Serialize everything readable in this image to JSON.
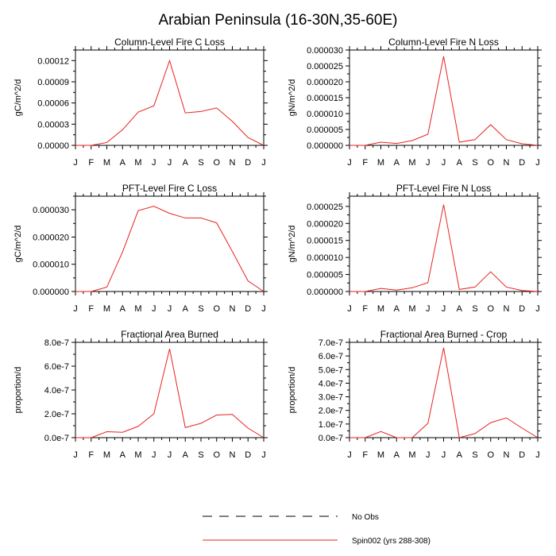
{
  "title": "Arabian Peninsula (16-30N,35-60E)",
  "legend": [
    {
      "label": "No Obs",
      "style": "dashed",
      "color": "#000000"
    },
    {
      "label": "Spin002 (yrs 288-308)",
      "style": "solid",
      "color": "#e8221f"
    }
  ],
  "chart_data": [
    {
      "type": "line",
      "title": "Column-Level Fire C Loss",
      "ylabel": "gC/m^2/d",
      "xlabel": "",
      "categories": [
        "J",
        "F",
        "M",
        "A",
        "M",
        "J",
        "J",
        "A",
        "S",
        "O",
        "N",
        "D",
        "J"
      ],
      "ylim": [
        0,
        0.000135
      ],
      "yticks": [
        0,
        3e-05,
        6e-05,
        9e-05,
        0.00012
      ],
      "ytick_labels": [
        "0.00000",
        "0.00003",
        "0.00006",
        "0.00009",
        "0.00012"
      ],
      "series": [
        {
          "name": "Spin002 (yrs 288-308)",
          "values": [
            0,
            0,
            4e-06,
            2.2e-05,
            4.7e-05,
            5.6e-05,
            0.00012,
            4.6e-05,
            4.8e-05,
            5.3e-05,
            3.4e-05,
            1.1e-05,
            0
          ]
        }
      ]
    },
    {
      "type": "line",
      "title": "Column-Level Fire N Loss",
      "ylabel": "gN/m^2/d",
      "xlabel": "",
      "categories": [
        "J",
        "F",
        "M",
        "A",
        "M",
        "J",
        "J",
        "A",
        "S",
        "O",
        "N",
        "D",
        "J"
      ],
      "ylim": [
        0,
        3e-05
      ],
      "yticks": [
        0,
        5e-06,
        1e-05,
        1.5e-05,
        2e-05,
        2.5e-05,
        3e-05
      ],
      "ytick_labels": [
        "0.000000",
        "0.000005",
        "0.000010",
        "0.000015",
        "0.000020",
        "0.000025",
        "0.000030"
      ],
      "series": [
        {
          "name": "Spin002 (yrs 288-308)",
          "values": [
            0,
            0,
            1e-06,
            6e-07,
            1.5e-06,
            3.5e-06,
            2.8e-05,
            1e-06,
            1.8e-06,
            6.5e-06,
            1.8e-06,
            5e-07,
            0
          ]
        }
      ]
    },
    {
      "type": "line",
      "title": "PFT-Level Fire C Loss",
      "ylabel": "gC/m^2/d",
      "xlabel": "",
      "categories": [
        "J",
        "F",
        "M",
        "A",
        "M",
        "J",
        "J",
        "A",
        "S",
        "O",
        "N",
        "D",
        "J"
      ],
      "ylim": [
        0,
        3.5e-05
      ],
      "yticks": [
        0,
        1e-05,
        2e-05,
        3e-05
      ],
      "ytick_labels": [
        "0.000000",
        "0.000010",
        "0.000020",
        "0.000030"
      ],
      "series": [
        {
          "name": "Spin002 (yrs 288-308)",
          "values": [
            0,
            0,
            1.6e-06,
            1.45e-05,
            2.97e-05,
            3.13e-05,
            2.87e-05,
            2.7e-05,
            2.7e-05,
            2.52e-05,
            1.47e-05,
            3.9e-06,
            0
          ]
        }
      ]
    },
    {
      "type": "line",
      "title": "PFT-Level Fire N Loss",
      "ylabel": "gN/m^2/d",
      "xlabel": "",
      "categories": [
        "J",
        "F",
        "M",
        "A",
        "M",
        "J",
        "J",
        "A",
        "S",
        "O",
        "N",
        "D",
        "J"
      ],
      "ylim": [
        0,
        2.8e-05
      ],
      "yticks": [
        0,
        5e-06,
        1e-05,
        1.5e-05,
        2e-05,
        2.5e-05
      ],
      "ytick_labels": [
        "0.000000",
        "0.000005",
        "0.000010",
        "0.000015",
        "0.000020",
        "0.000025"
      ],
      "series": [
        {
          "name": "Spin002 (yrs 288-308)",
          "values": [
            0,
            0,
            9e-07,
            4e-07,
            1.1e-06,
            2.6e-06,
            2.55e-05,
            6e-07,
            1.3e-06,
            5.8e-06,
            1.3e-06,
            3e-07,
            0
          ]
        }
      ]
    },
    {
      "type": "line",
      "title": "Fractional Area Burned",
      "ylabel": "proportion/d",
      "xlabel": "",
      "categories": [
        "J",
        "F",
        "M",
        "A",
        "M",
        "J",
        "J",
        "A",
        "S",
        "O",
        "N",
        "D",
        "J"
      ],
      "ylim": [
        0,
        8e-07
      ],
      "yticks": [
        0,
        2e-07,
        4e-07,
        6e-07,
        8e-07
      ],
      "ytick_labels": [
        "0.0e-7",
        "2.0e-7",
        "4.0e-7",
        "6.0e-7",
        "8.0e-7"
      ],
      "series": [
        {
          "name": "Spin002 (yrs 288-308)",
          "values": [
            0,
            0,
            5e-08,
            4.5e-08,
            9.5e-08,
            2e-07,
            7.45e-07,
            8.5e-08,
            1.2e-07,
            1.9e-07,
            1.95e-07,
            8e-08,
            0
          ]
        }
      ]
    },
    {
      "type": "line",
      "title": "Fractional Area Burned - Crop",
      "ylabel": "proportion/d",
      "xlabel": "",
      "categories": [
        "J",
        "F",
        "M",
        "A",
        "M",
        "J",
        "J",
        "A",
        "S",
        "O",
        "N",
        "D",
        "J"
      ],
      "ylim": [
        0,
        7e-07
      ],
      "yticks": [
        0,
        1e-07,
        2e-07,
        3e-07,
        4e-07,
        5e-07,
        6e-07,
        7e-07
      ],
      "ytick_labels": [
        "0.0e-7",
        "1.0e-7",
        "2.0e-7",
        "3.0e-7",
        "4.0e-7",
        "5.0e-7",
        "6.0e-7",
        "7.0e-7"
      ],
      "series": [
        {
          "name": "Spin002 (yrs 288-308)",
          "values": [
            0,
            0,
            4.5e-08,
            0,
            0,
            1.05e-07,
            6.6e-07,
            0,
            3e-08,
            1.1e-07,
            1.45e-07,
            7e-08,
            0
          ]
        }
      ]
    }
  ]
}
